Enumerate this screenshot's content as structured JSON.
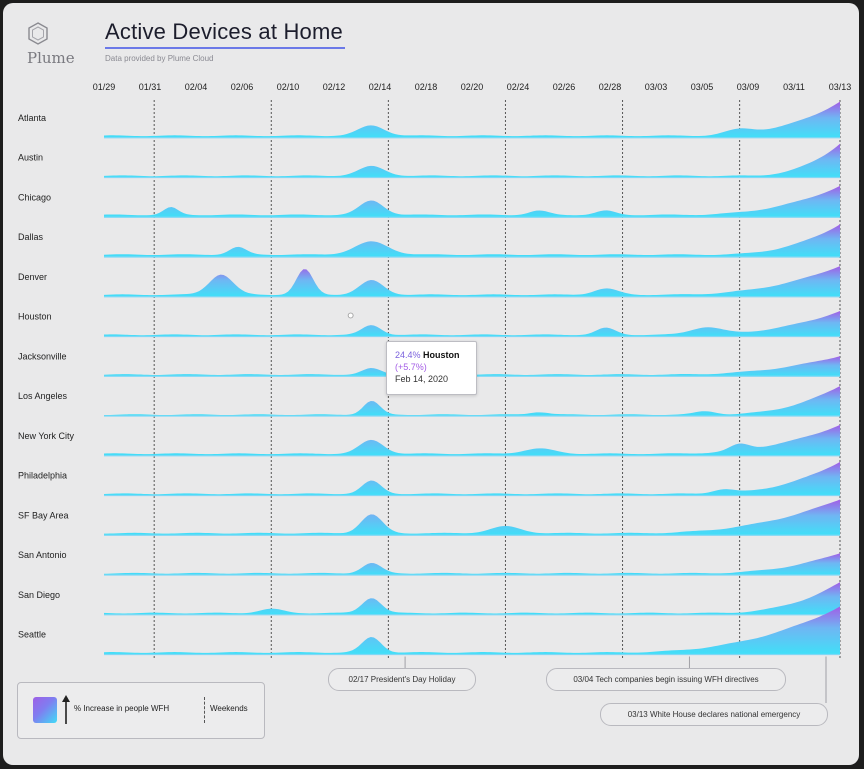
{
  "header": {
    "title": "Active Devices at Home",
    "subtitle": "Data provided by Plume Cloud",
    "logo_text": "Plume"
  },
  "colors": {
    "area_low": "#40e0f8",
    "area_high": "#a25ce6",
    "baseline": "#7fd8f5",
    "weekend_line": "#555555",
    "background": "#e9e9ea"
  },
  "legend": {
    "increase_label": "% Increase in people WFH",
    "weekends_label": "Weekends"
  },
  "tooltip": {
    "percent": "24.4%",
    "city": "Houston",
    "change": "(+5.7%)",
    "date": "Feb 14, 2020"
  },
  "annotations": [
    {
      "text": "02/17 President's Day Holiday"
    },
    {
      "text": "03/04 Tech companies begin issuing WFH directives"
    },
    {
      "text": "03/13 White House declares national emergency"
    }
  ],
  "chart_data": {
    "type": "area",
    "title": "Active Devices at Home",
    "x_tick_labels": [
      "01/29",
      "01/31",
      "02/04",
      "02/06",
      "02/10",
      "02/12",
      "02/14",
      "02/18",
      "02/20",
      "02/24",
      "02/26",
      "02/28",
      "03/03",
      "03/05",
      "03/09",
      "03/11",
      "03/13"
    ],
    "x_start": "2020-01-29",
    "x_end": "2020-03-13",
    "weekend_marker_dates": [
      "2020-02-01",
      "2020-02-08",
      "2020-02-15",
      "2020-02-22",
      "2020-02-29",
      "2020-03-07",
      "2020-03-13"
    ],
    "value_unit": "% increase in people WFH",
    "bumps_key": [
      "date",
      "relative_height",
      "width_days"
    ],
    "series": [
      {
        "name": "Atlanta",
        "base": 0.06,
        "bumps": [
          [
            "2020-02-14",
            0.3,
            1.1
          ],
          [
            "2020-03-07",
            0.15,
            1.2
          ]
        ],
        "end_start": 35,
        "end_peak": 1.0
      },
      {
        "name": "Austin",
        "base": 0.05,
        "bumps": [
          [
            "2020-02-14",
            0.28,
            1.1
          ]
        ],
        "end_start": 38,
        "end_peak": 0.95
      },
      {
        "name": "Chicago",
        "base": 0.07,
        "bumps": [
          [
            "2020-02-02",
            0.22,
            0.6
          ],
          [
            "2020-02-14",
            0.42,
            1.0
          ],
          [
            "2020-02-24",
            0.12,
            0.8
          ],
          [
            "2020-02-28",
            0.12,
            0.8
          ]
        ],
        "end_start": 34,
        "end_peak": 0.85
      },
      {
        "name": "Dallas",
        "base": 0.07,
        "bumps": [
          [
            "2020-02-06",
            0.22,
            0.7
          ],
          [
            "2020-02-14",
            0.38,
            1.4
          ]
        ],
        "end_start": 36,
        "end_peak": 0.9
      },
      {
        "name": "Denver",
        "base": 0.06,
        "bumps": [
          [
            "2020-02-05",
            0.6,
            1.0
          ],
          [
            "2020-02-10",
            0.75,
            0.7
          ],
          [
            "2020-02-14",
            0.42,
            1.0
          ],
          [
            "2020-02-28",
            0.18,
            1.0
          ]
        ],
        "end_start": 33,
        "end_peak": 0.85
      },
      {
        "name": "Houston",
        "base": 0.05,
        "bumps": [
          [
            "2020-02-14",
            0.28,
            0.8
          ],
          [
            "2020-02-28",
            0.2,
            0.8
          ],
          [
            "2020-03-05",
            0.22,
            1.3
          ]
        ],
        "end_start": 34,
        "end_peak": 0.7
      },
      {
        "name": "Jacksonville",
        "base": 0.05,
        "bumps": [
          [
            "2020-02-14",
            0.18,
            0.8
          ]
        ],
        "end_start": 33,
        "end_peak": 0.55
      },
      {
        "name": "Los Angeles",
        "base": 0.04,
        "bumps": [
          [
            "2020-02-14",
            0.4,
            0.7
          ],
          [
            "2020-02-24",
            0.08,
            0.8
          ],
          [
            "2020-03-05",
            0.1,
            0.9
          ]
        ],
        "end_start": 36,
        "end_peak": 0.85
      },
      {
        "name": "New York City",
        "base": 0.06,
        "bumps": [
          [
            "2020-02-14",
            0.4,
            1.0
          ],
          [
            "2020-02-24",
            0.15,
            1.3
          ],
          [
            "2020-03-07",
            0.18,
            0.8
          ]
        ],
        "end_start": 33,
        "end_peak": 0.85
      },
      {
        "name": "Philadelphia",
        "base": 0.05,
        "bumps": [
          [
            "2020-02-14",
            0.38,
            0.8
          ],
          [
            "2020-03-06",
            0.12,
            0.9
          ]
        ],
        "end_start": 35,
        "end_peak": 0.95
      },
      {
        "name": "SF Bay Area",
        "base": 0.06,
        "bumps": [
          [
            "2020-02-14",
            0.55,
            0.9
          ],
          [
            "2020-02-22",
            0.2,
            1.3
          ]
        ],
        "end_start": 31,
        "end_peak": 1.0
      },
      {
        "name": "San Antonio",
        "base": 0.05,
        "bumps": [
          [
            "2020-02-14",
            0.3,
            0.8
          ]
        ],
        "end_start": 35,
        "end_peak": 0.6
      },
      {
        "name": "San Diego",
        "base": 0.05,
        "bumps": [
          [
            "2020-02-14",
            0.45,
            0.8
          ],
          [
            "2020-02-08",
            0.12,
            1.0
          ]
        ],
        "end_start": 36,
        "end_peak": 0.9
      },
      {
        "name": "Seattle",
        "base": 0.06,
        "bumps": [
          [
            "2020-02-14",
            0.45,
            0.8
          ]
        ],
        "end_start": 30,
        "end_peak": 1.35
      }
    ]
  }
}
